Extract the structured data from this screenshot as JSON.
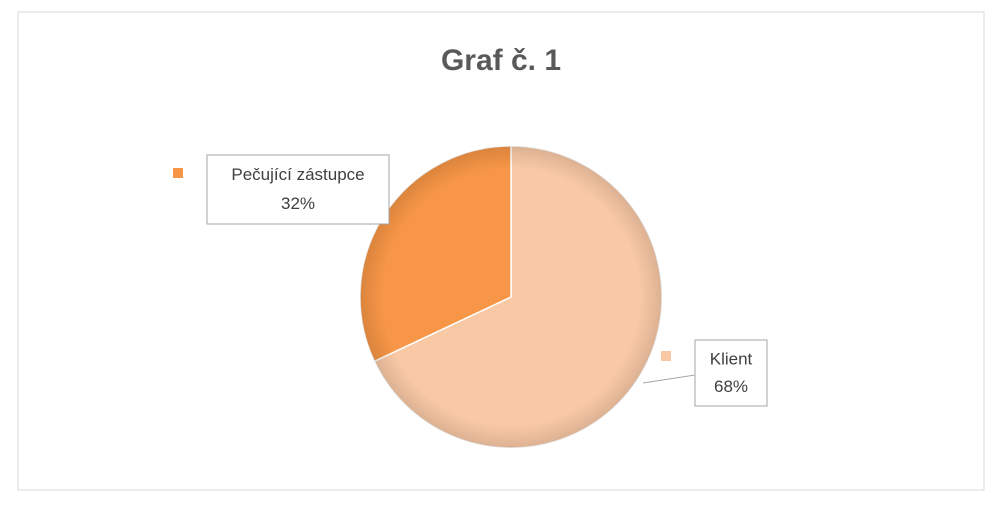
{
  "chart_data": {
    "type": "pie",
    "title": "Graf č. 1",
    "categories": [
      "Klient",
      "Pečující zástupce"
    ],
    "values": [
      68,
      32
    ],
    "value_labels": [
      "68%",
      "32%"
    ],
    "colors": [
      "#f9c9a6",
      "#f79646"
    ]
  }
}
